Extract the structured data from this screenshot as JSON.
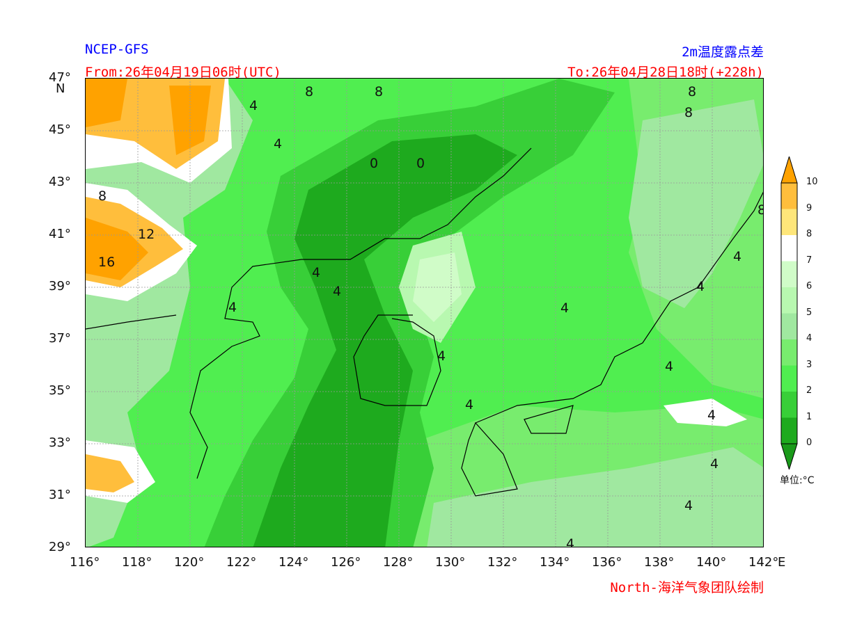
{
  "header": {
    "source": "NCEP-GFS",
    "title": "2m温度露点差",
    "from": "From:26年04月19日06时(UTC)",
    "to": "To:26年04月28日18时(+228h)"
  },
  "footer": {
    "credit": "North-海洋气象团队绘制"
  },
  "axes": {
    "lat_labels": [
      "47°",
      "45°",
      "43°",
      "41°",
      "39°",
      "37°",
      "35°",
      "33°",
      "31°",
      "29°"
    ],
    "lat_unit": "N",
    "lon_labels": [
      "116°",
      "118°",
      "120°",
      "122°",
      "124°",
      "126°",
      "128°",
      "130°",
      "132°",
      "134°",
      "136°",
      "138°",
      "140°",
      "142°"
    ],
    "lon_unit": "E"
  },
  "colorbar": {
    "ticks": [
      "10",
      "9",
      "8",
      "7",
      "6",
      "5",
      "4",
      "3",
      "2",
      "1",
      "0"
    ],
    "unit_label": "单位:°C",
    "colors": {
      "below0": "#1a9a1a",
      "0-1": "#1eaa1e",
      "1-2": "#38cf38",
      "2-3": "#50ee50",
      "3-4": "#78ec6e",
      "4-5": "#a0e8a0",
      "5-6": "#b8f8b0",
      "6-7": "#d0fcc8",
      "7-8": "#ffffff",
      "8-9": "#fee67a",
      "9-10": "#ffbe3c",
      "above10": "#ffa200"
    }
  },
  "contour_labels": [
    "8",
    "8",
    "4",
    "4",
    "0",
    "0",
    "8",
    "12",
    "16",
    "4",
    "4",
    "4",
    "4",
    "4",
    "4",
    "4",
    "4",
    "4",
    "4",
    "4",
    "4",
    "4",
    "8",
    "8",
    "8"
  ]
}
